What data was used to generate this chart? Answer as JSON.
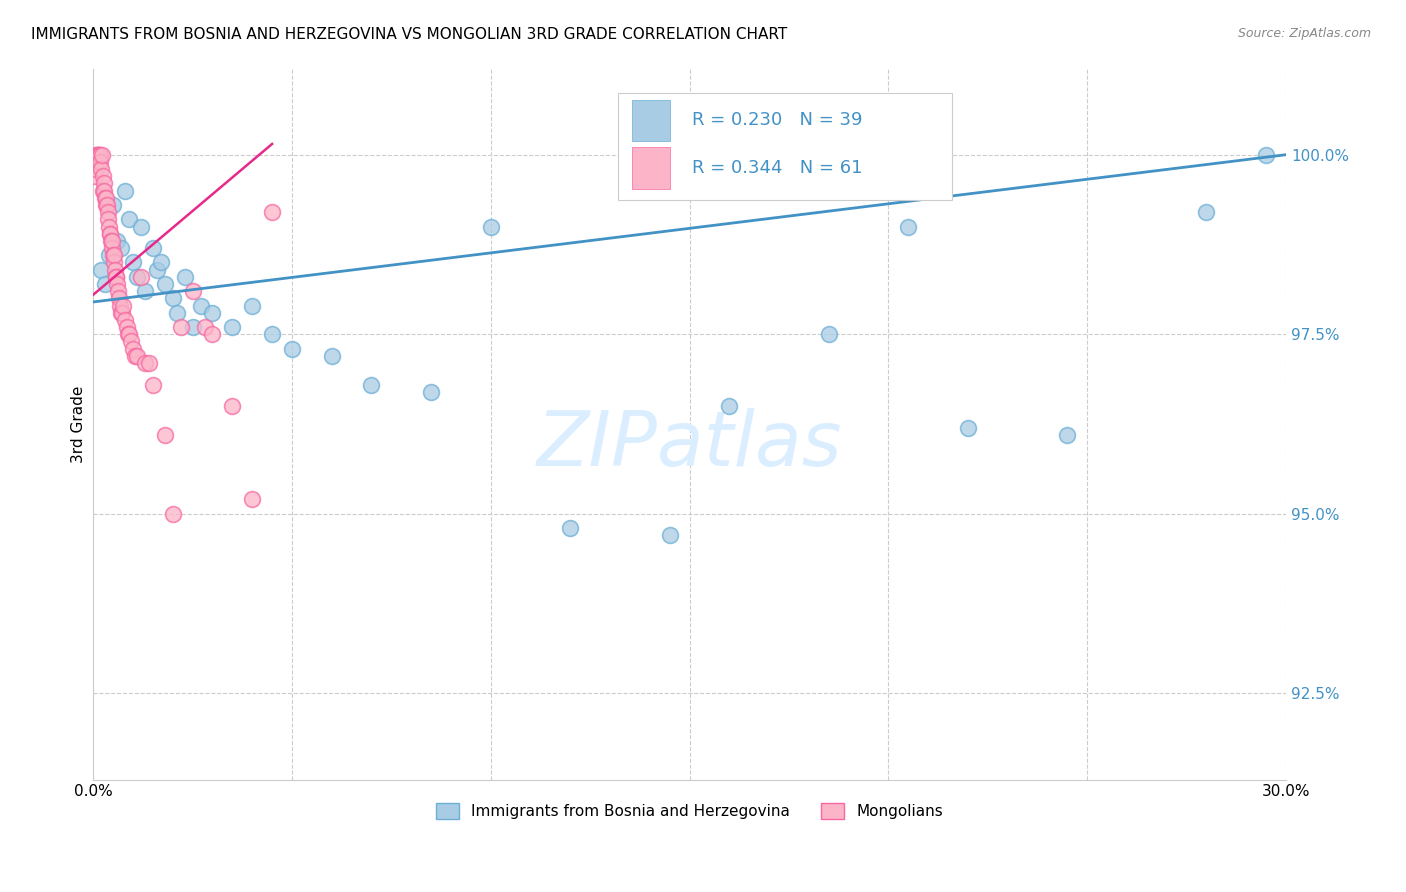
{
  "title": "IMMIGRANTS FROM BOSNIA AND HERZEGOVINA VS MONGOLIAN 3RD GRADE CORRELATION CHART",
  "source": "Source: ZipAtlas.com",
  "ylabel": "3rd Grade",
  "ytick_values": [
    92.5,
    95.0,
    97.5,
    100.0
  ],
  "xmin": 0.0,
  "xmax": 30.0,
  "ymin": 91.3,
  "ymax": 101.2,
  "color_blue": "#a8cce4",
  "color_blue_edge": "#6baed6",
  "color_blue_line": "#4292c6",
  "color_pink": "#fbb4c8",
  "color_pink_edge": "#f768a1",
  "color_pink_line": "#e7298a",
  "watermark_color": "#dbeeff",
  "legend_label1": "Immigrants from Bosnia and Herzegovina",
  "legend_label2": "Mongolians",
  "blue_line_x0": 0.0,
  "blue_line_y0": 97.95,
  "blue_line_x1": 30.0,
  "blue_line_y1": 100.0,
  "pink_line_x0": 0.0,
  "pink_line_y0": 98.05,
  "pink_line_x1": 4.5,
  "pink_line_y1": 100.15,
  "blue_x": [
    0.2,
    0.3,
    0.4,
    0.5,
    0.6,
    0.7,
    0.8,
    0.9,
    1.0,
    1.1,
    1.2,
    1.3,
    1.5,
    1.6,
    1.7,
    1.8,
    2.0,
    2.1,
    2.3,
    2.5,
    2.7,
    3.0,
    3.5,
    4.0,
    4.5,
    5.0,
    6.0,
    7.0,
    8.5,
    10.0,
    12.0,
    14.5,
    16.0,
    18.5,
    20.5,
    22.0,
    24.5,
    28.0,
    29.5
  ],
  "blue_y": [
    98.4,
    98.2,
    98.6,
    99.3,
    98.8,
    98.7,
    99.5,
    99.1,
    98.5,
    98.3,
    99.0,
    98.1,
    98.7,
    98.4,
    98.5,
    98.2,
    98.0,
    97.8,
    98.3,
    97.6,
    97.9,
    97.8,
    97.6,
    97.9,
    97.5,
    97.3,
    97.2,
    96.8,
    96.7,
    99.0,
    94.8,
    94.7,
    96.5,
    97.5,
    99.0,
    96.2,
    96.1,
    99.2,
    100.0
  ],
  "pink_x": [
    0.05,
    0.07,
    0.08,
    0.1,
    0.12,
    0.13,
    0.15,
    0.16,
    0.18,
    0.2,
    0.22,
    0.24,
    0.25,
    0.27,
    0.28,
    0.3,
    0.32,
    0.33,
    0.35,
    0.37,
    0.38,
    0.4,
    0.42,
    0.43,
    0.45,
    0.47,
    0.48,
    0.5,
    0.52,
    0.53,
    0.55,
    0.57,
    0.58,
    0.6,
    0.63,
    0.65,
    0.67,
    0.7,
    0.72,
    0.75,
    0.8,
    0.85,
    0.88,
    0.9,
    0.95,
    1.0,
    1.05,
    1.1,
    1.2,
    1.3,
    1.4,
    1.5,
    1.8,
    2.0,
    2.2,
    2.5,
    2.8,
    3.0,
    3.5,
    4.0,
    4.5
  ],
  "pink_y": [
    99.7,
    99.8,
    100.0,
    100.0,
    100.0,
    100.0,
    100.0,
    100.0,
    99.9,
    99.8,
    100.0,
    99.7,
    99.5,
    99.6,
    99.5,
    99.4,
    99.3,
    99.4,
    99.3,
    99.2,
    99.1,
    99.0,
    98.9,
    98.9,
    98.8,
    98.7,
    98.8,
    98.6,
    98.5,
    98.6,
    98.4,
    98.3,
    98.3,
    98.2,
    98.1,
    98.0,
    97.9,
    97.8,
    97.8,
    97.9,
    97.7,
    97.6,
    97.5,
    97.5,
    97.4,
    97.3,
    97.2,
    97.2,
    98.3,
    97.1,
    97.1,
    96.8,
    96.1,
    95.0,
    97.6,
    98.1,
    97.6,
    97.5,
    96.5,
    95.2,
    99.2
  ]
}
